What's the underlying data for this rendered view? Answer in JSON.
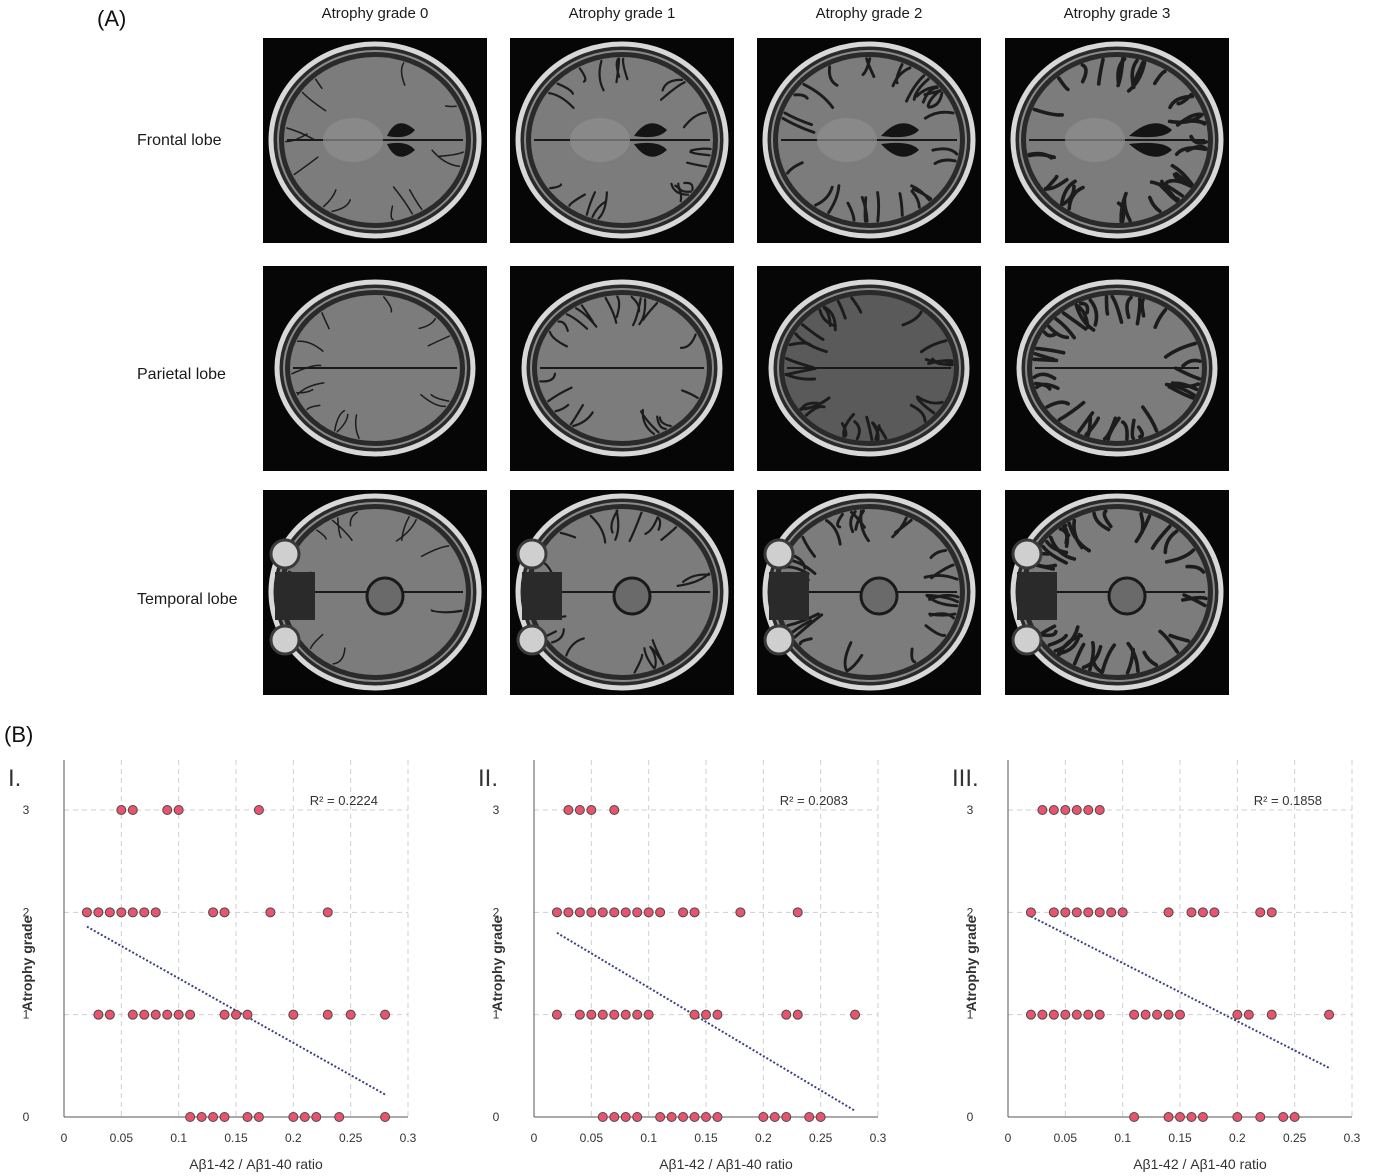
{
  "panel_a": {
    "label": "(A)",
    "columns": [
      "Atrophy grade  0",
      "Atrophy grade  1",
      "Atrophy grade  2",
      "Atrophy grade  3"
    ],
    "rows": [
      "Frontal lobe",
      "Parietal  lobe",
      "Temporal lobe"
    ]
  },
  "panel_b": {
    "label": "(B)"
  },
  "chart_data": [
    {
      "type": "scatter",
      "roman": "I.",
      "r2_label": "R² = 0.2224",
      "xlabel": "Aβ1-42 / Aβ1-40 ratio",
      "ylabel": "Atrophy grade",
      "xlim": [
        0,
        0.3
      ],
      "ylim": [
        0,
        3
      ],
      "xticks": [
        "0",
        "0.05",
        "0.1",
        "0.15",
        "0.2",
        "0.25",
        "0.3"
      ],
      "yticks": [
        "0",
        "1",
        "2",
        "3"
      ],
      "grid": true,
      "trend": {
        "x": [
          0.02,
          0.28
        ],
        "y": [
          1.86,
          0.22
        ]
      },
      "points": [
        {
          "x": 0.05,
          "y": 3
        },
        {
          "x": 0.06,
          "y": 3
        },
        {
          "x": 0.09,
          "y": 3
        },
        {
          "x": 0.1,
          "y": 3
        },
        {
          "x": 0.17,
          "y": 3
        },
        {
          "x": 0.02,
          "y": 2
        },
        {
          "x": 0.03,
          "y": 2
        },
        {
          "x": 0.04,
          "y": 2
        },
        {
          "x": 0.05,
          "y": 2
        },
        {
          "x": 0.06,
          "y": 2
        },
        {
          "x": 0.07,
          "y": 2
        },
        {
          "x": 0.08,
          "y": 2
        },
        {
          "x": 0.13,
          "y": 2
        },
        {
          "x": 0.14,
          "y": 2
        },
        {
          "x": 0.18,
          "y": 2
        },
        {
          "x": 0.23,
          "y": 2
        },
        {
          "x": 0.03,
          "y": 1
        },
        {
          "x": 0.04,
          "y": 1
        },
        {
          "x": 0.06,
          "y": 1
        },
        {
          "x": 0.07,
          "y": 1
        },
        {
          "x": 0.08,
          "y": 1
        },
        {
          "x": 0.09,
          "y": 1
        },
        {
          "x": 0.1,
          "y": 1
        },
        {
          "x": 0.11,
          "y": 1
        },
        {
          "x": 0.14,
          "y": 1
        },
        {
          "x": 0.15,
          "y": 1
        },
        {
          "x": 0.16,
          "y": 1
        },
        {
          "x": 0.2,
          "y": 1
        },
        {
          "x": 0.23,
          "y": 1
        },
        {
          "x": 0.25,
          "y": 1
        },
        {
          "x": 0.28,
          "y": 1
        },
        {
          "x": 0.11,
          "y": 0
        },
        {
          "x": 0.12,
          "y": 0
        },
        {
          "x": 0.13,
          "y": 0
        },
        {
          "x": 0.14,
          "y": 0
        },
        {
          "x": 0.16,
          "y": 0
        },
        {
          "x": 0.17,
          "y": 0
        },
        {
          "x": 0.2,
          "y": 0
        },
        {
          "x": 0.21,
          "y": 0
        },
        {
          "x": 0.22,
          "y": 0
        },
        {
          "x": 0.24,
          "y": 0
        },
        {
          "x": 0.28,
          "y": 0
        }
      ]
    },
    {
      "type": "scatter",
      "roman": "II.",
      "r2_label": "R² = 0.2083",
      "xlabel": "Aβ1-42 / Aβ1-40 ratio",
      "ylabel": "Atrophy grade",
      "xlim": [
        0,
        0.3
      ],
      "ylim": [
        0,
        3
      ],
      "xticks": [
        "0",
        "0.05",
        "0.1",
        "0.15",
        "0.2",
        "0.25",
        "0.3"
      ],
      "yticks": [
        "0",
        "1",
        "2",
        "3"
      ],
      "grid": true,
      "trend": {
        "x": [
          0.02,
          0.28
        ],
        "y": [
          1.8,
          0.06
        ]
      },
      "points": [
        {
          "x": 0.03,
          "y": 3
        },
        {
          "x": 0.04,
          "y": 3
        },
        {
          "x": 0.05,
          "y": 3
        },
        {
          "x": 0.07,
          "y": 3
        },
        {
          "x": 0.02,
          "y": 2
        },
        {
          "x": 0.03,
          "y": 2
        },
        {
          "x": 0.04,
          "y": 2
        },
        {
          "x": 0.05,
          "y": 2
        },
        {
          "x": 0.06,
          "y": 2
        },
        {
          "x": 0.07,
          "y": 2
        },
        {
          "x": 0.08,
          "y": 2
        },
        {
          "x": 0.09,
          "y": 2
        },
        {
          "x": 0.1,
          "y": 2
        },
        {
          "x": 0.11,
          "y": 2
        },
        {
          "x": 0.13,
          "y": 2
        },
        {
          "x": 0.14,
          "y": 2
        },
        {
          "x": 0.18,
          "y": 2
        },
        {
          "x": 0.23,
          "y": 2
        },
        {
          "x": 0.02,
          "y": 1
        },
        {
          "x": 0.04,
          "y": 1
        },
        {
          "x": 0.05,
          "y": 1
        },
        {
          "x": 0.06,
          "y": 1
        },
        {
          "x": 0.07,
          "y": 1
        },
        {
          "x": 0.08,
          "y": 1
        },
        {
          "x": 0.09,
          "y": 1
        },
        {
          "x": 0.1,
          "y": 1
        },
        {
          "x": 0.14,
          "y": 1
        },
        {
          "x": 0.15,
          "y": 1
        },
        {
          "x": 0.16,
          "y": 1
        },
        {
          "x": 0.22,
          "y": 1
        },
        {
          "x": 0.23,
          "y": 1
        },
        {
          "x": 0.28,
          "y": 1
        },
        {
          "x": 0.06,
          "y": 0
        },
        {
          "x": 0.07,
          "y": 0
        },
        {
          "x": 0.08,
          "y": 0
        },
        {
          "x": 0.09,
          "y": 0
        },
        {
          "x": 0.11,
          "y": 0
        },
        {
          "x": 0.12,
          "y": 0
        },
        {
          "x": 0.13,
          "y": 0
        },
        {
          "x": 0.14,
          "y": 0
        },
        {
          "x": 0.15,
          "y": 0
        },
        {
          "x": 0.16,
          "y": 0
        },
        {
          "x": 0.2,
          "y": 0
        },
        {
          "x": 0.21,
          "y": 0
        },
        {
          "x": 0.22,
          "y": 0
        },
        {
          "x": 0.24,
          "y": 0
        },
        {
          "x": 0.25,
          "y": 0
        }
      ]
    },
    {
      "type": "scatter",
      "roman": "III.",
      "r2_label": "R² = 0.1858",
      "xlabel": "Aβ1-42 / Aβ1-40 ratio",
      "ylabel": "Atrophy grade",
      "xlim": [
        0,
        0.3
      ],
      "ylim": [
        0,
        3
      ],
      "xticks": [
        "0",
        "0.05",
        "0.1",
        "0.15",
        "0.2",
        "0.25",
        "0.3"
      ],
      "yticks": [
        "0",
        "1",
        "2",
        "3"
      ],
      "grid": true,
      "trend": {
        "x": [
          0.02,
          0.28
        ],
        "y": [
          1.96,
          0.48
        ]
      },
      "points": [
        {
          "x": 0.03,
          "y": 3
        },
        {
          "x": 0.04,
          "y": 3
        },
        {
          "x": 0.05,
          "y": 3
        },
        {
          "x": 0.06,
          "y": 3
        },
        {
          "x": 0.07,
          "y": 3
        },
        {
          "x": 0.08,
          "y": 3
        },
        {
          "x": 0.02,
          "y": 2
        },
        {
          "x": 0.04,
          "y": 2
        },
        {
          "x": 0.05,
          "y": 2
        },
        {
          "x": 0.06,
          "y": 2
        },
        {
          "x": 0.07,
          "y": 2
        },
        {
          "x": 0.08,
          "y": 2
        },
        {
          "x": 0.09,
          "y": 2
        },
        {
          "x": 0.1,
          "y": 2
        },
        {
          "x": 0.14,
          "y": 2
        },
        {
          "x": 0.16,
          "y": 2
        },
        {
          "x": 0.17,
          "y": 2
        },
        {
          "x": 0.18,
          "y": 2
        },
        {
          "x": 0.22,
          "y": 2
        },
        {
          "x": 0.23,
          "y": 2
        },
        {
          "x": 0.02,
          "y": 1
        },
        {
          "x": 0.03,
          "y": 1
        },
        {
          "x": 0.04,
          "y": 1
        },
        {
          "x": 0.05,
          "y": 1
        },
        {
          "x": 0.06,
          "y": 1
        },
        {
          "x": 0.07,
          "y": 1
        },
        {
          "x": 0.08,
          "y": 1
        },
        {
          "x": 0.11,
          "y": 1
        },
        {
          "x": 0.12,
          "y": 1
        },
        {
          "x": 0.13,
          "y": 1
        },
        {
          "x": 0.14,
          "y": 1
        },
        {
          "x": 0.15,
          "y": 1
        },
        {
          "x": 0.2,
          "y": 1
        },
        {
          "x": 0.21,
          "y": 1
        },
        {
          "x": 0.23,
          "y": 1
        },
        {
          "x": 0.28,
          "y": 1
        },
        {
          "x": 0.11,
          "y": 0
        },
        {
          "x": 0.14,
          "y": 0
        },
        {
          "x": 0.15,
          "y": 0
        },
        {
          "x": 0.16,
          "y": 0
        },
        {
          "x": 0.17,
          "y": 0
        },
        {
          "x": 0.2,
          "y": 0
        },
        {
          "x": 0.22,
          "y": 0
        },
        {
          "x": 0.24,
          "y": 0
        },
        {
          "x": 0.25,
          "y": 0
        }
      ]
    }
  ],
  "colors": {
    "point_fill": "#e8546d",
    "point_stroke": "#4a4a4a",
    "trend": "#3b3f86",
    "grid": "#cfcfcf"
  }
}
